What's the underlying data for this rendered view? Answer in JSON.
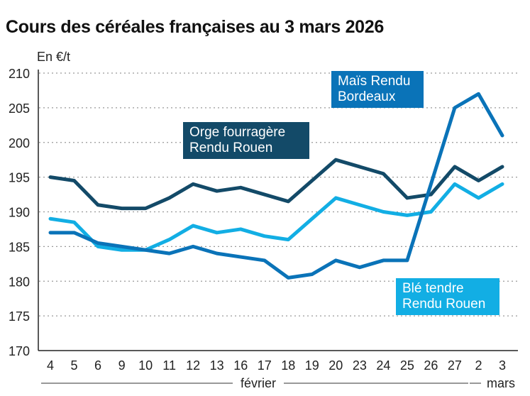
{
  "chart_data": {
    "type": "line",
    "title": "Cours des céréales françaises au 3 mars 2026",
    "ylabel": "En €/t",
    "ylim": [
      170,
      210
    ],
    "yticks": [
      170,
      175,
      180,
      185,
      190,
      195,
      200,
      205,
      210
    ],
    "categories": [
      "4",
      "5",
      "6",
      "9",
      "10",
      "11",
      "12",
      "13",
      "16",
      "17",
      "18",
      "19",
      "20",
      "23",
      "24",
      "25",
      "26",
      "27",
      "2",
      "3"
    ],
    "month_labels": [
      "février",
      "mars"
    ],
    "grid": true,
    "series": [
      {
        "name": "Orge fourragère Rendu Rouen",
        "color": "#134a68",
        "values": [
          195,
          194.5,
          191,
          190.5,
          190.5,
          192,
          194,
          193,
          193.5,
          192.5,
          191.5,
          194.5,
          197.5,
          196.5,
          195.5,
          192,
          192.5,
          196.5,
          194.5,
          196.5
        ]
      },
      {
        "name": "Blé tendre Rendu Rouen",
        "color": "#12aee4",
        "values": [
          189,
          188.5,
          185,
          184.5,
          184.5,
          186,
          188,
          187,
          187.5,
          186.5,
          186,
          189,
          192,
          191,
          190,
          189.5,
          190,
          194,
          192,
          194
        ]
      },
      {
        "name": "Maïs Rendu Bordeaux",
        "color": "#0a73b8",
        "values": [
          187,
          187,
          185.5,
          185,
          184.5,
          184,
          185,
          184,
          183.5,
          183,
          180.5,
          181,
          183,
          182,
          183,
          183,
          194,
          205,
          207,
          201
        ]
      }
    ]
  }
}
